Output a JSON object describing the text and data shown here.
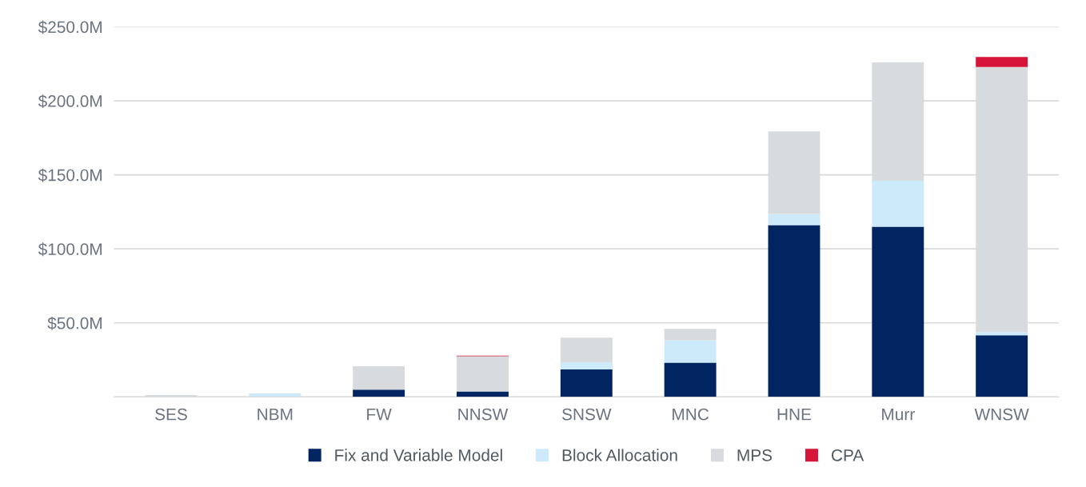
{
  "chart_data": {
    "type": "bar",
    "stacked": true,
    "categories": [
      "SES",
      "NBM",
      "FW",
      "NNSW",
      "SNSW",
      "MNC",
      "HNE",
      "Murr",
      "WNSW"
    ],
    "series": [
      {
        "name": "Fix and Variable Model",
        "color": "#002561",
        "values": [
          null,
          null,
          4.9,
          3.7,
          18.5,
          23.1,
          116,
          115,
          41.6
        ]
      },
      {
        "name": "Block Allocation",
        "color": "#cdeafa",
        "values": [
          null,
          2.4,
          null,
          null,
          4.9,
          15.2,
          7.6,
          31,
          2.2
        ]
      },
      {
        "name": "MPS",
        "color": "#d8dbde",
        "values": [
          1.2,
          null,
          15.8,
          23.7,
          16.6,
          7.7,
          55.8,
          80,
          179
        ]
      },
      {
        "name": "CPA",
        "color": "#d7153a",
        "values": [
          null,
          null,
          null,
          0.5,
          null,
          null,
          null,
          null,
          6.8
        ]
      }
    ],
    "ylim": [
      0,
      250
    ],
    "yticks": [
      {
        "value": 0,
        "label": null
      },
      {
        "value": 50,
        "label": "$50.0M"
      },
      {
        "value": 100,
        "label": "$100.0M"
      },
      {
        "value": 150,
        "label": "$150.0M"
      },
      {
        "value": 200,
        "label": "$200.0M"
      },
      {
        "value": 250,
        "label": "$250.0M"
      }
    ],
    "grid": "y",
    "legend": "bottom"
  }
}
